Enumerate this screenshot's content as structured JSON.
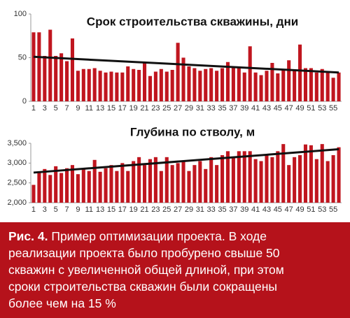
{
  "chart_data": [
    {
      "type": "bar",
      "title": "Срок строительства скважины, дни",
      "color": "#c0161f",
      "categories": [
        "1",
        null,
        "3",
        null,
        "5",
        null,
        "7",
        null,
        "9",
        null,
        "11",
        null,
        "13",
        null,
        "15",
        null,
        "17",
        null,
        "19",
        null,
        "21",
        null,
        "23",
        null,
        "25",
        null,
        "27",
        null,
        "29",
        null,
        "31",
        null,
        "33",
        null,
        "35",
        null,
        "37",
        null,
        "39",
        null,
        "41",
        null,
        "43",
        null,
        "45",
        null,
        "47",
        null,
        "49",
        null,
        "51",
        null,
        "53",
        null,
        "55",
        null
      ],
      "values": [
        79,
        79,
        52,
        82,
        52,
        55,
        46,
        72,
        35,
        37,
        37,
        38,
        35,
        33,
        34,
        33,
        33,
        40,
        37,
        36,
        45,
        29,
        34,
        37,
        34,
        36,
        67,
        50,
        40,
        38,
        35,
        37,
        38,
        35,
        38,
        45,
        40,
        39,
        33,
        63,
        33,
        30,
        35,
        44,
        32,
        37,
        47,
        35,
        65,
        38,
        38,
        33,
        37,
        33,
        27,
        33
      ],
      "trendline": [
        51,
        33
      ],
      "ylim": [
        0,
        100
      ],
      "yticks": [
        0,
        50,
        100
      ]
    },
    {
      "type": "bar",
      "title": "Глубина по стволу, м",
      "color": "#c0161f",
      "categories": [
        "1",
        null,
        "3",
        null,
        "5",
        null,
        "7",
        null,
        "9",
        null,
        "11",
        null,
        "13",
        null,
        "15",
        null,
        "17",
        null,
        "19",
        null,
        "21",
        null,
        "23",
        null,
        "25",
        null,
        "27",
        null,
        "29",
        null,
        "31",
        null,
        "33",
        null,
        "35",
        null,
        "37",
        null,
        "39",
        null,
        "41",
        null,
        "43",
        null,
        "45",
        null,
        "47",
        null,
        "49",
        null,
        "51",
        null,
        "53",
        null,
        "55",
        null
      ],
      "values": [
        2450,
        2780,
        2850,
        2700,
        2920,
        2750,
        2870,
        2950,
        2720,
        2850,
        2800,
        3080,
        2780,
        2870,
        2950,
        2800,
        3000,
        2800,
        3050,
        3150,
        2950,
        3100,
        3150,
        2800,
        3150,
        2950,
        3000,
        3050,
        2800,
        2950,
        3050,
        2850,
        3150,
        2950,
        3200,
        3300,
        3150,
        3300,
        3300,
        3300,
        3100,
        3050,
        3200,
        3150,
        3300,
        3480,
        2950,
        3150,
        3200,
        3470,
        3450,
        3100,
        3480,
        3050,
        3200,
        3400
      ],
      "trendline": [
        2760,
        3350
      ],
      "ylim": [
        2000,
        3500
      ],
      "yticks": [
        {
          "value": 2000,
          "label": "2,000"
        },
        {
          "value": 2500,
          "label": "2,500"
        },
        {
          "value": 3000,
          "label": "3,000"
        },
        {
          "value": 3500,
          "label": "3,500"
        }
      ]
    }
  ],
  "caption": {
    "label": "Рис. 4.",
    "lines": [
      "Пример оптимизации проекта. В ходе",
      "реализации проекта было пробурено свыше 50",
      "скважин с увеличенной общей длиной, при этом",
      "сроки строительства скважин были сокращены",
      "более чем на 15 %"
    ]
  }
}
